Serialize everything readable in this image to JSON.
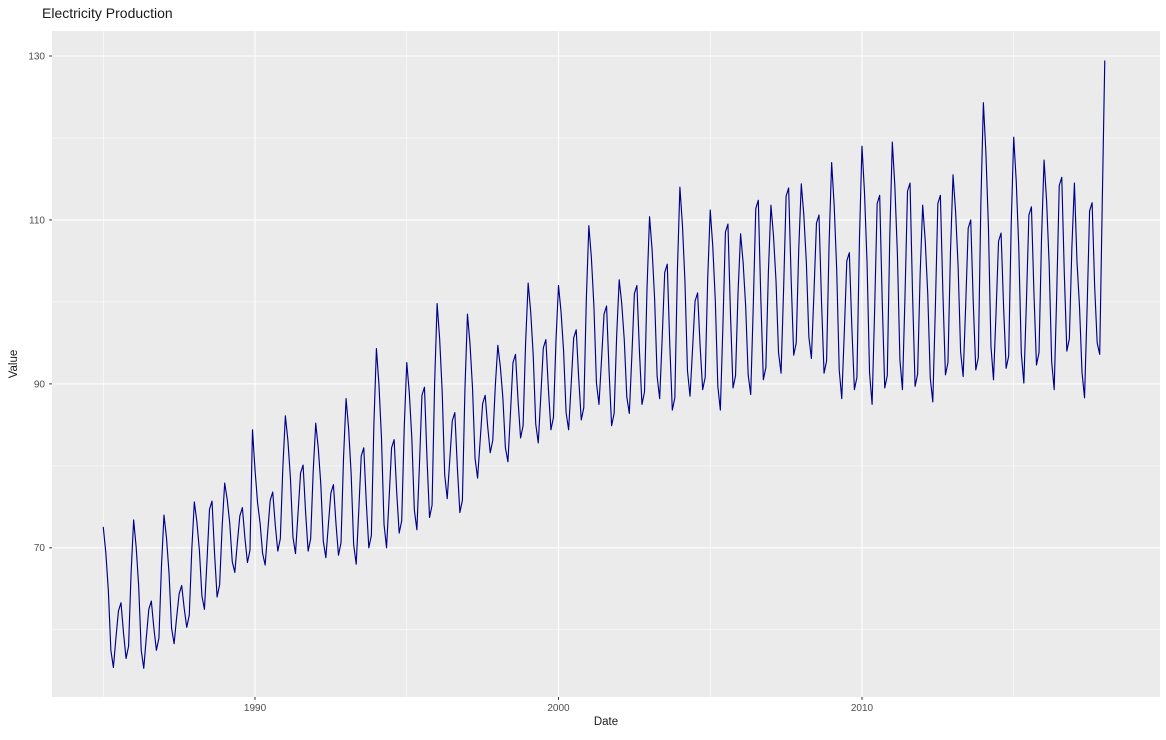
{
  "chart_data": {
    "type": "line",
    "title": "Electricity Production",
    "xlabel": "Date",
    "ylabel": "Value",
    "x_ticks": [
      1990,
      2000,
      2010
    ],
    "x_tick_labels": [
      "1990",
      "2000",
      "2010"
    ],
    "x_minor_ticks": [
      1985,
      1995,
      2005,
      2015
    ],
    "y_ticks": [
      70,
      90,
      110,
      130
    ],
    "y_tick_labels": [
      "70",
      "90",
      "110",
      "130"
    ],
    "y_minor_ticks": [
      60,
      80,
      100,
      120
    ],
    "xlim": [
      1983.31,
      2019.82
    ],
    "ylim": [
      51.8,
      133.05
    ],
    "grid": true,
    "legend": false,
    "panel_background": "#ebebeb",
    "grid_color": "#ffffff",
    "tick_color": "#333333",
    "tick_label_color": "#4d4d4d",
    "line_color": "#00008B",
    "series": [
      {
        "name": "Value",
        "start_year": 1985,
        "start_month": 1,
        "frequency": "monthly",
        "values": [
          72.5,
          69.4,
          64.8,
          57.5,
          55.4,
          59.0,
          62.3,
          63.3,
          59.6,
          56.5,
          58.0,
          67.0,
          73.4,
          70.1,
          65.3,
          57.5,
          55.3,
          59.0,
          62.5,
          63.5,
          60.2,
          57.5,
          59.0,
          67.7,
          74.0,
          71.2,
          66.9,
          60.2,
          58.3,
          61.5,
          64.4,
          65.4,
          62.6,
          60.3,
          61.8,
          69.8,
          75.6,
          73.2,
          69.7,
          64.1,
          62.5,
          68.4,
          74.7,
          75.7,
          69.3,
          64.0,
          65.5,
          72.6,
          77.9,
          75.9,
          73.0,
          68.3,
          67.0,
          70.6,
          73.9,
          74.9,
          71.2,
          68.2,
          69.7,
          84.4,
          79.5,
          75.5,
          73.0,
          69.3,
          67.9,
          71.9,
          75.8,
          76.8,
          72.8,
          69.6,
          71.1,
          79.8,
          86.1,
          83.1,
          78.5,
          71.3,
          69.3,
          74.2,
          79.1,
          80.1,
          74.3,
          69.6,
          71.1,
          79.3,
          85.2,
          82.2,
          77.8,
          70.8,
          68.8,
          72.8,
          76.7,
          77.7,
          73.0,
          69.1,
          70.6,
          81.0,
          88.2,
          84.6,
          79.1,
          70.4,
          68.0,
          74.4,
          81.2,
          82.2,
          75.5,
          70.0,
          71.5,
          85.1,
          94.3,
          89.9,
          83.4,
          72.9,
          70.0,
          75.9,
          82.2,
          83.2,
          76.9,
          71.8,
          73.3,
          84.7,
          92.6,
          88.9,
          83.4,
          74.6,
          72.2,
          80.0,
          88.6,
          89.6,
          80.9,
          73.7,
          75.2,
          89.9,
          99.8,
          95.5,
          89.1,
          78.9,
          76.0,
          80.7,
          85.5,
          86.5,
          79.8,
          74.3,
          75.8,
          89.3,
          98.5,
          94.9,
          89.5,
          80.9,
          78.5,
          83.0,
          87.6,
          88.6,
          84.8,
          81.6,
          83.1,
          89.7,
          94.7,
          92.1,
          88.3,
          82.2,
          80.5,
          86.4,
          92.6,
          93.6,
          88.0,
          83.4,
          84.9,
          95.1,
          102.3,
          98.8,
          93.5,
          85.1,
          82.8,
          88.5,
          94.4,
          95.4,
          89.4,
          84.4,
          85.9,
          95.3,
          102.0,
          98.8,
          94.1,
          86.5,
          84.4,
          89.9,
          95.6,
          96.6,
          90.6,
          85.6,
          87.1,
          100.3,
          109.3,
          105.4,
          99.5,
          90.1,
          87.5,
          92.9,
          98.5,
          99.5,
          91.5,
          84.9,
          86.4,
          95.9,
          102.7,
          99.8,
          95.4,
          88.4,
          86.4,
          93.4,
          101.0,
          102.0,
          94.0,
          87.5,
          89.0,
          101.7,
          110.4,
          106.4,
          100.4,
          90.9,
          88.2,
          95.6,
          103.6,
          104.6,
          94.8,
          86.8,
          88.3,
          103.7,
          114.0,
          109.4,
          102.5,
          91.6,
          88.5,
          94.2,
          100.1,
          101.1,
          94.6,
          89.3,
          90.8,
          102.9,
          111.2,
          106.8,
          100.2,
          89.7,
          86.8,
          97.0,
          108.5,
          109.5,
          98.5,
          89.5,
          91.0,
          101.2,
          108.3,
          104.8,
          99.5,
          91.1,
          88.7,
          99.4,
          111.4,
          112.4,
          100.4,
          90.5,
          92.0,
          103.7,
          111.8,
          108.1,
          102.6,
          93.8,
          91.3,
          101.5,
          112.9,
          113.9,
          102.7,
          93.5,
          95.0,
          106.5,
          114.4,
          110.6,
          104.8,
          95.7,
          93.1,
          101.0,
          109.6,
          110.6,
          100.0,
          91.3,
          92.8,
          107.2,
          117.0,
          111.8,
          104.0,
          91.7,
          88.2,
          96.2,
          105.0,
          106.0,
          96.8,
          89.3,
          90.8,
          107.7,
          119.0,
          113.3,
          104.8,
          91.3,
          87.5,
          99.0,
          112.0,
          113.0,
          100.1,
          89.5,
          91.0,
          108.1,
          119.5,
          114.1,
          105.9,
          92.9,
          89.3,
          100.6,
          113.5,
          114.5,
          100.9,
          89.7,
          91.2,
          103.4,
          111.8,
          107.5,
          101.0,
          90.7,
          87.8,
          99.1,
          112.0,
          113.0,
          101.0,
          91.1,
          92.6,
          106.2,
          115.5,
          111.1,
          104.4,
          93.9,
          90.9,
          99.5,
          109.0,
          110.0,
          99.9,
          91.7,
          93.2,
          111.9,
          124.3,
          118.2,
          109.1,
          94.6,
          90.5,
          98.6,
          107.4,
          108.4,
          99.3,
          91.9,
          93.4,
          109.4,
          120.1,
          114.7,
          106.6,
          93.7,
          90.1,
          99.8,
          110.6,
          111.6,
          101.0,
          92.3,
          93.8,
          107.8,
          117.3,
          112.3,
          104.7,
          92.7,
          89.3,
          101.0,
          114.2,
          115.2,
          103.5,
          94.0,
          95.5,
          106.7,
          114.5,
          105.0,
          99.5,
          91.4,
          88.3,
          99.0,
          111.1,
          112.1,
          101.9,
          95.0,
          93.6,
          112.0,
          129.4
        ]
      }
    ]
  }
}
